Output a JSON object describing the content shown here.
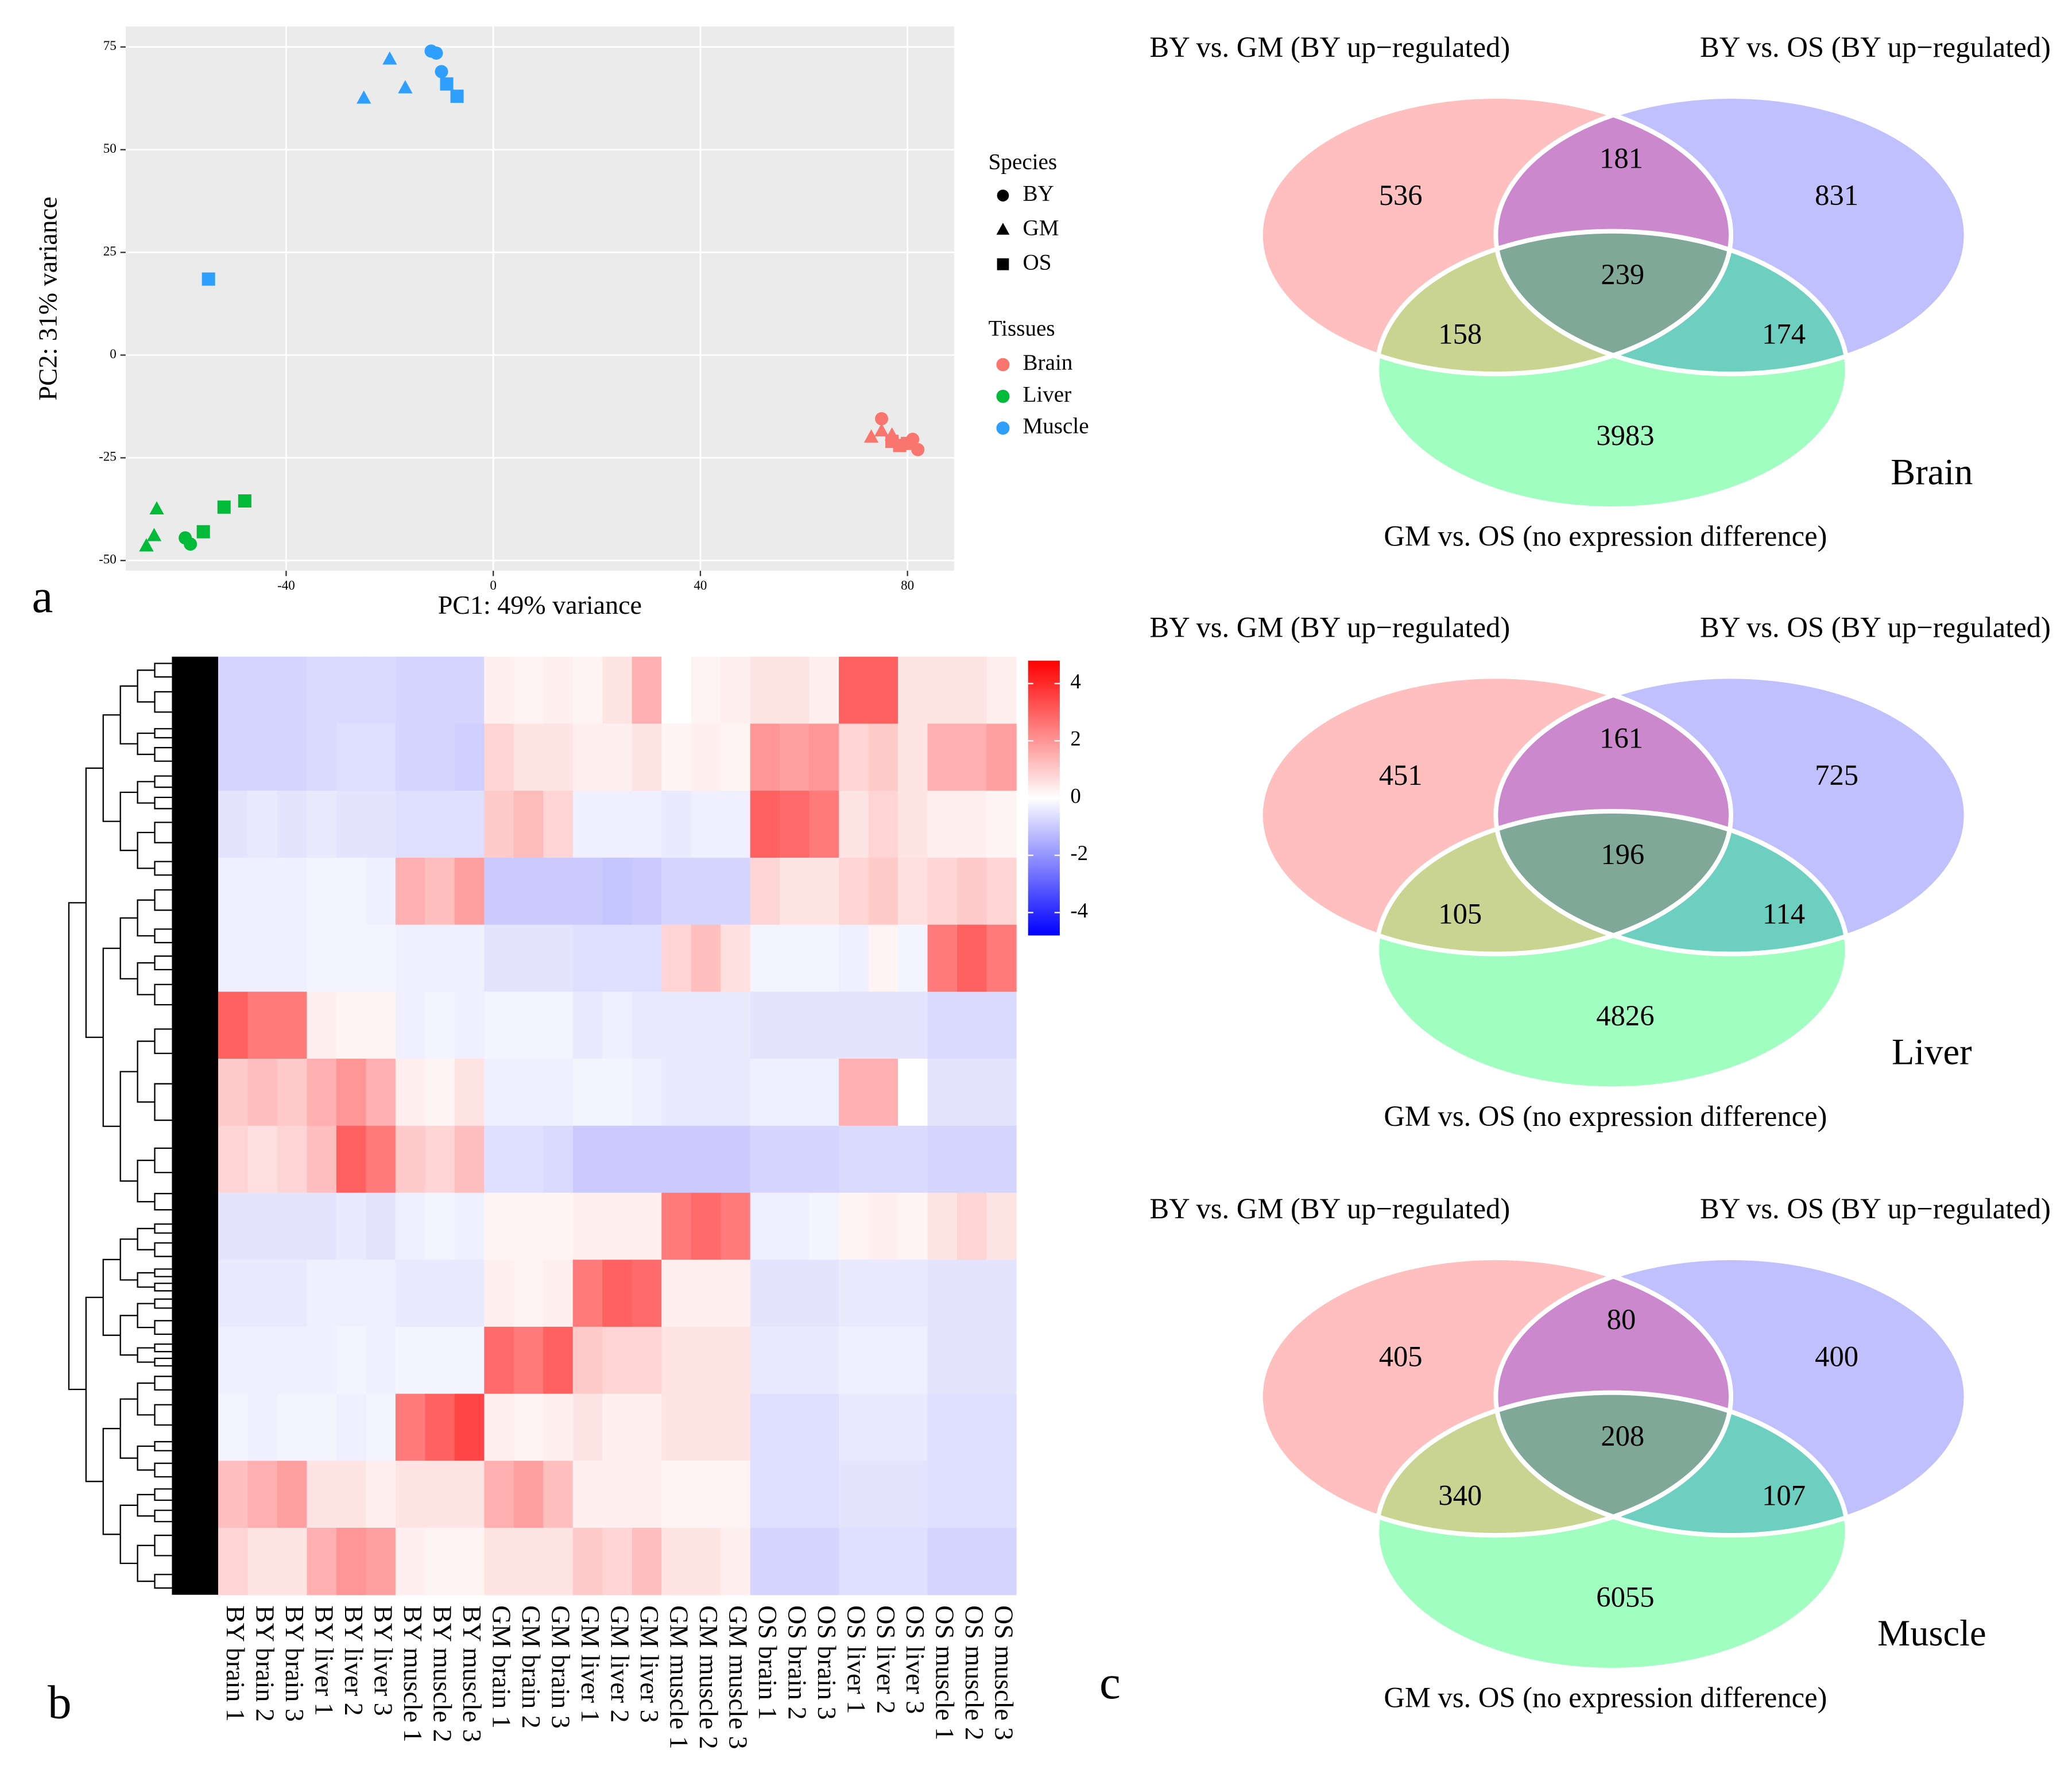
{
  "panel_labels": [
    "a",
    "b",
    "c"
  ],
  "chart_data": [
    {
      "type": "scatter",
      "xlabel": "PC1: 49% variance",
      "ylabel": "PC2: 31% variance",
      "xlim": [
        -71,
        89
      ],
      "ylim": [
        -52.5,
        80
      ],
      "xticks": [
        -40,
        0,
        40,
        80
      ],
      "yticks": [
        -50,
        -25,
        0,
        25,
        50,
        75
      ],
      "grid": true,
      "species_legend": {
        "title": "Species",
        "names": [
          "BY",
          "GM",
          "OS"
        ],
        "shapes": [
          "circle",
          "triangle",
          "square"
        ]
      },
      "tissue_legend_title": "Tissues",
      "series": [
        {
          "name": "Brain",
          "color": "#f8766d",
          "x": [
            75,
            81,
            82,
            73,
            75,
            77,
            78.5,
            80,
            77
          ],
          "y": [
            -15.5,
            -20.5,
            -23,
            -20,
            -18.5,
            -19.5,
            -22,
            -21.5,
            -21
          ],
          "species": [
            "BY",
            "BY",
            "BY",
            "GM",
            "GM",
            "GM",
            "OS",
            "OS",
            "OS"
          ]
        },
        {
          "name": "Liver",
          "color": "#00ba38",
          "x": [
            -59.5,
            -58.5,
            -65,
            -65.5,
            -67,
            -56,
            -52,
            -48
          ],
          "y": [
            -44.5,
            -46,
            -37.5,
            -44,
            -46.5,
            -43,
            -37,
            -35.5
          ],
          "species": [
            "BY",
            "BY",
            "GM",
            "GM",
            "GM",
            "OS",
            "OS",
            "OS"
          ]
        },
        {
          "name": "Muscle",
          "color": "#2e9fff",
          "x": [
            -12,
            -11,
            -10,
            -20,
            -25,
            -17,
            -9,
            -7,
            -55
          ],
          "y": [
            74,
            73.5,
            69,
            72,
            62.5,
            65,
            66,
            63,
            18.5
          ],
          "species": [
            "BY",
            "BY",
            "BY",
            "GM",
            "GM",
            "GM",
            "OS",
            "OS",
            "OS"
          ]
        }
      ]
    },
    {
      "type": "heatmap",
      "columns": [
        "BY brain 1",
        "BY brain 2",
        "BY brain 3",
        "BY liver 1",
        "BY liver 2",
        "BY liver 3",
        "BY muscle 1",
        "BY muscle 2",
        "BY muscle 3",
        "GM brain 1",
        "GM brain 2",
        "GM brain 3",
        "GM liver 1",
        "GM liver 2",
        "GM liver 3",
        "GM muscle 1",
        "GM muscle 2",
        "GM muscle 3",
        "OS brain 1",
        "OS brain 2",
        "OS brain 3",
        "OS liver 1",
        "OS liver 2",
        "OS liver 3",
        "OS muscle 1",
        "OS muscle 2",
        "OS muscle 3"
      ],
      "clim": [
        -4.8,
        4.8
      ],
      "cticks": [
        4,
        2,
        0,
        -2,
        -4
      ],
      "colors": [
        "#0000ff",
        "#ffffff",
        "#ff0000"
      ],
      "values": [
        [
          -0.8,
          -0.8,
          -0.8,
          -0.7,
          -0.7,
          -0.7,
          -0.8,
          -0.8,
          -0.8,
          0.3,
          0.2,
          0.3,
          0.2,
          0.5,
          1.5,
          0,
          0.2,
          0.3,
          0.5,
          0.5,
          0.3,
          3,
          3,
          0.5,
          0.5,
          0.5,
          0.3
        ],
        [
          -0.8,
          -0.8,
          -0.8,
          -0.7,
          -0.6,
          -0.6,
          -0.8,
          -0.8,
          -0.9,
          0.8,
          0.5,
          0.5,
          0.3,
          0.3,
          0.5,
          0.2,
          0.3,
          0.2,
          2,
          1.8,
          2,
          0.8,
          1,
          0.5,
          1.5,
          1.5,
          1.8
        ],
        [
          -0.5,
          -0.4,
          -0.5,
          -0.4,
          -0.5,
          -0.5,
          -0.6,
          -0.6,
          -0.6,
          1,
          1.3,
          0.8,
          -0.3,
          -0.3,
          -0.3,
          -0.4,
          -0.3,
          -0.3,
          3,
          2.8,
          2.5,
          0.5,
          0.8,
          0.5,
          0.3,
          0.3,
          0.2
        ],
        [
          -0.3,
          -0.3,
          -0.3,
          -0.2,
          -0.2,
          -0.3,
          1.5,
          1.2,
          1.8,
          -1,
          -1,
          -1,
          -1,
          -1.1,
          -1,
          -0.8,
          -0.8,
          -0.8,
          0.8,
          0.5,
          0.5,
          0.8,
          1,
          0.6,
          0.8,
          1,
          0.8
        ],
        [
          -0.3,
          -0.3,
          -0.3,
          -0.2,
          -0.2,
          -0.2,
          -0.3,
          -0.3,
          -0.3,
          -0.5,
          -0.5,
          -0.5,
          -0.6,
          -0.6,
          -0.6,
          0.8,
          1.2,
          0.6,
          -0.2,
          -0.2,
          -0.2,
          -0.3,
          0.2,
          -0.2,
          2.5,
          3,
          2.5
        ],
        [
          3,
          2.5,
          2.5,
          0.3,
          0.2,
          0.2,
          -0.3,
          -0.2,
          -0.3,
          -0.2,
          -0.2,
          -0.2,
          -0.4,
          -0.3,
          -0.4,
          -0.4,
          -0.4,
          -0.4,
          -0.5,
          -0.5,
          -0.5,
          -0.5,
          -0.5,
          -0.5,
          -0.7,
          -0.7,
          -0.7
        ],
        [
          1,
          1.2,
          1,
          1.5,
          2,
          1.5,
          0.3,
          0.2,
          0.5,
          -0.3,
          -0.3,
          -0.3,
          -0.2,
          -0.2,
          -0.3,
          -0.4,
          -0.4,
          -0.4,
          -0.3,
          -0.3,
          -0.3,
          1.5,
          1.5,
          0,
          -0.5,
          -0.5,
          -0.5
        ],
        [
          0.8,
          0.6,
          0.8,
          1.2,
          3,
          2.5,
          1,
          0.8,
          1.2,
          -0.6,
          -0.6,
          -0.7,
          -1,
          -1,
          -1,
          -1,
          -1,
          -1,
          -0.8,
          -0.8,
          -0.8,
          -0.7,
          -0.7,
          -0.7,
          -0.8,
          -0.8,
          -0.8
        ],
        [
          -0.5,
          -0.5,
          -0.5,
          -0.5,
          -0.4,
          -0.5,
          -0.3,
          -0.2,
          -0.3,
          0.2,
          0.2,
          0.2,
          0.3,
          0.3,
          0.3,
          2.5,
          2.8,
          2.5,
          -0.3,
          -0.3,
          -0.2,
          0.2,
          0.3,
          0.2,
          0.5,
          0.8,
          0.5
        ],
        [
          -0.4,
          -0.4,
          -0.4,
          -0.3,
          -0.3,
          -0.3,
          -0.4,
          -0.4,
          -0.4,
          0.3,
          0.2,
          0.3,
          2.5,
          3,
          2.8,
          0.3,
          0.3,
          0.3,
          -0.5,
          -0.5,
          -0.5,
          -0.4,
          -0.4,
          -0.4,
          -0.5,
          -0.5,
          -0.5
        ],
        [
          -0.3,
          -0.3,
          -0.3,
          -0.3,
          -0.2,
          -0.3,
          -0.2,
          -0.2,
          -0.2,
          2.8,
          2.5,
          3,
          1,
          0.8,
          0.8,
          0.5,
          0.5,
          0.5,
          -0.4,
          -0.4,
          -0.4,
          -0.3,
          -0.3,
          -0.3,
          -0.5,
          -0.5,
          -0.5
        ],
        [
          -0.2,
          -0.3,
          -0.2,
          -0.2,
          -0.3,
          -0.2,
          2.5,
          3,
          3.5,
          0.3,
          0.2,
          0.3,
          0.5,
          0.3,
          0.3,
          0.5,
          0.5,
          0.5,
          -0.6,
          -0.6,
          -0.6,
          -0.4,
          -0.4,
          -0.4,
          -0.6,
          -0.6,
          -0.6
        ],
        [
          1.2,
          1.5,
          1.8,
          0.5,
          0.5,
          0.3,
          0.5,
          0.5,
          0.5,
          1.5,
          1.8,
          1.2,
          0.3,
          0.3,
          0.3,
          0.2,
          0.2,
          0.2,
          -0.6,
          -0.6,
          -0.6,
          -0.5,
          -0.5,
          -0.5,
          -0.6,
          -0.6,
          -0.6
        ],
        [
          0.8,
          0.5,
          0.5,
          1.5,
          2,
          1.8,
          0.3,
          0.2,
          0.2,
          0.5,
          0.5,
          0.5,
          1,
          0.8,
          1.2,
          0.5,
          0.5,
          0.3,
          -0.8,
          -0.8,
          -0.8,
          -0.6,
          -0.6,
          -0.6,
          -0.8,
          -0.8,
          -0.8
        ]
      ]
    },
    {
      "type": "venn",
      "title": "Brain",
      "sets": [
        "BY vs. GM (BY up−regulated)",
        "BY vs. OS (BY up−regulated)",
        "GM vs. OS (no expression difference)"
      ],
      "values": [
        536,
        181,
        831,
        158,
        239,
        174,
        3983
      ],
      "colors": [
        "#ffbfbf",
        "#cc88cc",
        "#c0c0ff",
        "#c8d490",
        "#80a898",
        "#6ccfbf",
        "#a0ffc0"
      ]
    },
    {
      "type": "venn",
      "title": "Liver",
      "sets": [
        "BY vs. GM (BY up−regulated)",
        "BY vs. OS (BY up−regulated)",
        "GM vs. OS (no expression difference)"
      ],
      "values": [
        451,
        161,
        725,
        105,
        196,
        114,
        4826
      ],
      "colors": [
        "#ffbfbf",
        "#cc88cc",
        "#c0c0ff",
        "#c8d490",
        "#80a898",
        "#6ccfbf",
        "#a0ffc0"
      ]
    },
    {
      "type": "venn",
      "title": "Muscle",
      "sets": [
        "BY vs. GM (BY up−regulated)",
        "BY vs. OS (BY up−regulated)",
        "GM vs. OS (no expression difference)"
      ],
      "values": [
        405,
        80,
        400,
        340,
        208,
        107,
        6055
      ],
      "colors": [
        "#ffbfbf",
        "#cc88cc",
        "#c0c0ff",
        "#c8d490",
        "#80a898",
        "#6ccfbf",
        "#a0ffc0"
      ]
    }
  ]
}
